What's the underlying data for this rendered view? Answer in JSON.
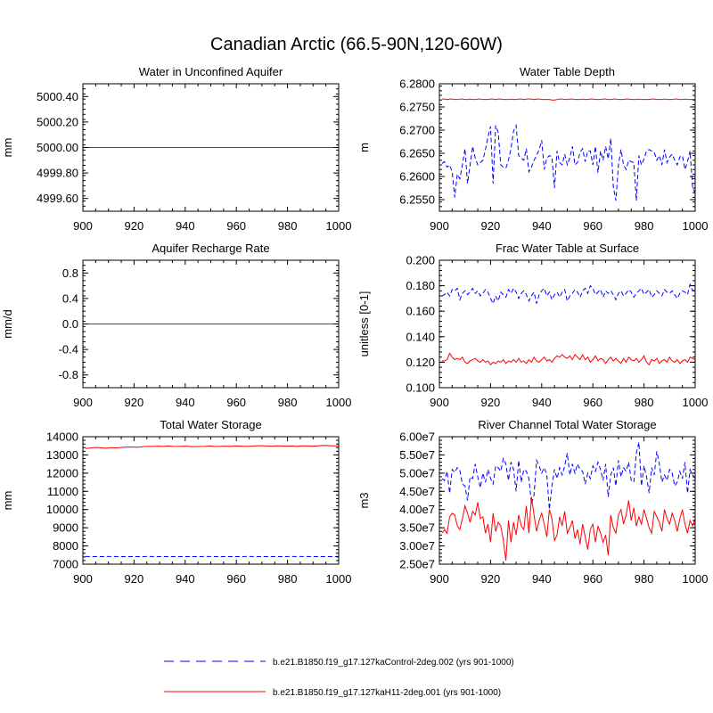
{
  "title": "Canadian Arctic (66.5-90N,120-60W)",
  "colors": {
    "series_0": "#0000ff",
    "series_1": "#ff0000",
    "axis": "#000000"
  },
  "legend": {
    "placement": "bottom",
    "items": [
      {
        "label": "b.e21.B1850.f19_g17.127kaControl-2deg.002 (yrs 901-1000)",
        "color": "#0000ff",
        "style": "dashed"
      },
      {
        "label": "b.e21.B1850.f19_g17.127kaH11-2deg.001 (yrs 901-1000)",
        "color": "#ff0000",
        "style": "solid"
      }
    ]
  },
  "chart_data": [
    {
      "type": "line",
      "title": "Water in Unconfined Aquifer",
      "ylabel": "mm",
      "xlim": [
        900,
        1000
      ],
      "ylim": [
        4999.5,
        5000.5
      ],
      "xticks": [
        900,
        920,
        940,
        960,
        980,
        1000
      ],
      "yticks": [
        "4999.60",
        "4999.80",
        "5000.00",
        "5000.20",
        "5000.40"
      ],
      "series": [
        {
          "color": "#0000ff",
          "dash": true,
          "x_start": 901,
          "values": [
            5000,
            5000
          ]
        },
        {
          "color": "#ff0000",
          "dash": false,
          "x_start": 901,
          "values": [
            5000,
            5000
          ]
        }
      ]
    },
    {
      "type": "line",
      "title": "Water Table Depth",
      "ylabel": "m",
      "xlim": [
        900,
        1000
      ],
      "ylim": [
        6.2525,
        6.28
      ],
      "xticks": [
        900,
        920,
        940,
        960,
        980,
        1000
      ],
      "yticks": [
        "6.2550",
        "6.2600",
        "6.2650",
        "6.2700",
        "6.2750",
        "6.2800"
      ],
      "series": [
        {
          "color": "#0000ff",
          "dash": true,
          "x_start": 901,
          "values": [
            6.2628,
            6.2632,
            6.262,
            6.2625,
            6.261,
            6.2555,
            6.2605,
            6.2595,
            6.2625,
            6.266,
            6.2585,
            6.2625,
            6.2665,
            6.264,
            6.2625,
            6.263,
            6.2635,
            6.2658,
            6.2685,
            6.2708,
            6.2585,
            6.271,
            6.2695,
            6.2625,
            6.262,
            6.2618,
            6.2635,
            6.266,
            6.2698,
            6.271,
            6.2645,
            6.264,
            6.2635,
            6.266,
            6.261,
            6.262,
            6.2635,
            6.2645,
            6.2658,
            6.2678,
            6.2615,
            6.264,
            6.2645,
            6.2642,
            6.2575,
            6.2655,
            6.263,
            6.2625,
            6.2648,
            6.2625,
            6.264,
            6.2665,
            6.2625,
            6.263,
            6.2652,
            6.266,
            6.2632,
            6.2655,
            6.2655,
            6.2625,
            6.2665,
            6.2608,
            6.2655,
            6.2635,
            6.2665,
            6.2638,
            6.2682,
            6.2578,
            6.2548,
            6.2625,
            6.2658,
            6.2625,
            6.2615,
            6.2635,
            6.2632,
            6.263,
            6.2548,
            6.2645,
            6.2625,
            6.2638,
            6.2655,
            6.2658,
            6.2655,
            6.2652,
            6.2635,
            6.2645,
            6.2625,
            6.2658,
            6.263,
            6.2642,
            6.2648,
            6.2635,
            6.2625,
            6.2642,
            6.2645,
            6.2615,
            6.2632,
            6.2655,
            6.2575,
            6.2565
          ]
        },
        {
          "color": "#ff0000",
          "dash": false,
          "x_start": 901,
          "values": [
            6.2767,
            6.2767,
            6.2766,
            6.2767,
            6.2767,
            6.2766,
            6.2766,
            6.2767,
            6.2767,
            6.2766,
            6.2766,
            6.2767,
            6.2766,
            6.2766,
            6.2767,
            6.2767,
            6.2766,
            6.2766,
            6.2766,
            6.2767,
            6.2767,
            6.2766,
            6.2767,
            6.2767,
            6.2766,
            6.2766,
            6.2766,
            6.2767,
            6.2766,
            6.2766,
            6.2767,
            6.2767,
            6.2766,
            6.2767,
            6.2767,
            6.2767,
            6.2766,
            6.2767,
            6.2767,
            6.2766,
            6.2766,
            6.2766,
            6.2766,
            6.2765,
            6.2765,
            6.2766,
            6.2767,
            6.2767,
            6.2766,
            6.2766,
            6.2767,
            6.2767,
            6.2766,
            6.2766,
            6.2766,
            6.2767,
            6.2766,
            6.2766,
            6.2767,
            6.2767,
            6.2766,
            6.2766,
            6.2766,
            6.2767,
            6.2767,
            6.2766,
            6.2766,
            6.2767,
            6.2767,
            6.2766,
            6.2766,
            6.2766,
            6.2767,
            6.2767,
            6.2766,
            6.2766,
            6.2766,
            6.2767,
            6.2766,
            6.2766,
            6.2766,
            6.2766,
            6.2767,
            6.2767,
            6.2766,
            6.2766,
            6.2766,
            6.2767,
            6.2766,
            6.2766,
            6.2766,
            6.2767,
            6.2767,
            6.2766,
            6.2766,
            6.2767,
            6.2766,
            6.2766,
            6.2766,
            6.2766
          ]
        }
      ]
    },
    {
      "type": "line",
      "title": "Aquifer Recharge Rate",
      "ylabel": "mm/d",
      "xlim": [
        900,
        1000
      ],
      "ylim": [
        -1.0,
        1.0
      ],
      "xticks": [
        900,
        920,
        940,
        960,
        980,
        1000
      ],
      "yticks": [
        "-0.8",
        "-0.4",
        "0.0",
        "0.4",
        "0.8"
      ],
      "series": [
        {
          "color": "#0000ff",
          "dash": true,
          "x_start": 901,
          "values": [
            0,
            0
          ]
        },
        {
          "color": "#ff0000",
          "dash": false,
          "x_start": 901,
          "values": [
            0,
            0
          ]
        }
      ]
    },
    {
      "type": "line",
      "title": "Frac Water Table at Surface",
      "ylabel": "unitless [0-1]",
      "xlim": [
        900,
        1000
      ],
      "ylim": [
        0.1,
        0.2
      ],
      "xticks": [
        900,
        920,
        940,
        960,
        980,
        1000
      ],
      "yticks": [
        "0.100",
        "0.120",
        "0.140",
        "0.160",
        "0.180",
        "0.200"
      ],
      "series": [
        {
          "color": "#0000ff",
          "dash": true,
          "x_start": 901,
          "values": [
            0.172,
            0.173,
            0.175,
            0.172,
            0.177,
            0.176,
            0.178,
            0.169,
            0.174,
            0.176,
            0.173,
            0.175,
            0.178,
            0.174,
            0.176,
            0.172,
            0.174,
            0.177,
            0.175,
            0.17,
            0.166,
            0.172,
            0.168,
            0.175,
            0.173,
            0.171,
            0.177,
            0.174,
            0.178,
            0.175,
            0.17,
            0.174,
            0.176,
            0.173,
            0.168,
            0.172,
            0.175,
            0.166,
            0.173,
            0.176,
            0.178,
            0.172,
            0.175,
            0.169,
            0.173,
            0.175,
            0.171,
            0.175,
            0.177,
            0.168,
            0.172,
            0.174,
            0.177,
            0.175,
            0.171,
            0.176,
            0.178,
            0.174,
            0.18,
            0.178,
            0.173,
            0.175,
            0.177,
            0.171,
            0.176,
            0.174,
            0.176,
            0.173,
            0.169,
            0.174,
            0.176,
            0.172,
            0.174,
            0.177,
            0.175,
            0.171,
            0.174,
            0.176,
            0.178,
            0.173,
            0.175,
            0.177,
            0.171,
            0.173,
            0.176,
            0.174,
            0.172,
            0.177,
            0.175,
            0.174,
            0.176,
            0.173,
            0.17,
            0.174,
            0.176,
            0.175,
            0.173,
            0.181,
            0.176,
            0.177
          ]
        },
        {
          "color": "#ff0000",
          "dash": false,
          "x_start": 901,
          "values": [
            0.121,
            0.121,
            0.122,
            0.127,
            0.124,
            0.122,
            0.123,
            0.122,
            0.124,
            0.12,
            0.119,
            0.121,
            0.122,
            0.123,
            0.121,
            0.12,
            0.122,
            0.12,
            0.121,
            0.118,
            0.12,
            0.119,
            0.121,
            0.12,
            0.122,
            0.119,
            0.121,
            0.12,
            0.122,
            0.12,
            0.123,
            0.12,
            0.121,
            0.119,
            0.122,
            0.12,
            0.124,
            0.121,
            0.12,
            0.122,
            0.124,
            0.121,
            0.122,
            0.12,
            0.123,
            0.125,
            0.124,
            0.126,
            0.124,
            0.123,
            0.125,
            0.122,
            0.126,
            0.124,
            0.122,
            0.126,
            0.122,
            0.124,
            0.12,
            0.122,
            0.125,
            0.121,
            0.123,
            0.122,
            0.119,
            0.122,
            0.124,
            0.121,
            0.123,
            0.121,
            0.119,
            0.123,
            0.12,
            0.124,
            0.122,
            0.121,
            0.123,
            0.12,
            0.122,
            0.125,
            0.12,
            0.118,
            0.122,
            0.121,
            0.123,
            0.119,
            0.121,
            0.122,
            0.12,
            0.124,
            0.121,
            0.12,
            0.122,
            0.119,
            0.121,
            0.122,
            0.12,
            0.124,
            0.123,
            0.122
          ]
        }
      ]
    },
    {
      "type": "line",
      "title": "Total Water Storage",
      "ylabel": "mm",
      "xlim": [
        900,
        1000
      ],
      "ylim": [
        7000,
        14000
      ],
      "xticks": [
        900,
        920,
        940,
        960,
        980,
        1000
      ],
      "yticks": [
        "7000",
        "8000",
        "9000",
        "10000",
        "11000",
        "12000",
        "13000",
        "14000"
      ],
      "series": [
        {
          "color": "#0000ff",
          "dash": true,
          "x_start": 901,
          "values": [
            7420,
            7418,
            7420,
            7415,
            7418,
            7420,
            7416,
            7414,
            7418,
            7420,
            7418,
            7416,
            7420,
            7419,
            7417,
            7418,
            7422,
            7418,
            7416,
            7420
          ]
        },
        {
          "color": "#ff0000",
          "dash": false,
          "x_start": 901,
          "values": [
            13350,
            13380,
            13410,
            13390,
            13370,
            13400,
            13390,
            13410,
            13430,
            13440,
            13420,
            13450,
            13470,
            13460,
            13480,
            13470,
            13490,
            13470,
            13460,
            13480,
            13470,
            13450,
            13460,
            13470,
            13490,
            13460,
            13470,
            13480,
            13470,
            13490,
            13480,
            13470,
            13480,
            13500,
            13510,
            13490,
            13480,
            13500,
            13490,
            13480,
            13490,
            13470,
            13500,
            13490,
            13480,
            13500,
            13520,
            13510,
            13500,
            13490
          ]
        }
      ]
    },
    {
      "type": "line",
      "title": "River Channel Total Water Storage",
      "ylabel": "m3",
      "xlim": [
        900,
        1000
      ],
      "ylim": [
        25000000,
        60000000
      ],
      "xticks": [
        900,
        920,
        940,
        960,
        980,
        1000
      ],
      "yticks": [
        "2.50e7",
        "3.00e7",
        "3.50e7",
        "4.00e7",
        "4.50e7",
        "5.00e7",
        "5.50e7",
        "6.00e7"
      ],
      "series": [
        {
          "color": "#0000ff",
          "dash": true,
          "x_start": 901,
          "values": [
            48500000,
            48000000,
            50500000,
            44500000,
            51000000,
            50200000,
            51500000,
            50800000,
            47000000,
            46500000,
            42500000,
            49000000,
            48500000,
            52500000,
            49000000,
            46000000,
            50000000,
            47500000,
            51000000,
            48500000,
            47000000,
            52000000,
            51500000,
            50500000,
            54000000,
            52500000,
            48000000,
            53000000,
            51000000,
            45000000,
            53500000,
            47500000,
            51000000,
            50500000,
            48500000,
            41500000,
            44000000,
            53500000,
            52000000,
            50000000,
            51500000,
            49500000,
            40000000,
            46500000,
            51000000,
            48500000,
            51500000,
            49500000,
            52000000,
            55500000,
            49500000,
            52500000,
            50000000,
            52500000,
            51000000,
            50500000,
            47000000,
            50000000,
            48500000,
            52000000,
            50500000,
            53000000,
            51000000,
            48000000,
            52500000,
            43500000,
            49500000,
            51500000,
            46500000,
            53500000,
            49000000,
            51500000,
            50500000,
            53000000,
            48000000,
            47500000,
            55500000,
            58500000,
            46500000,
            52000000,
            49000000,
            44500000,
            51500000,
            49500000,
            56000000,
            52500000,
            47500000,
            49500000,
            48000000,
            51000000,
            50000000,
            46500000,
            47500000,
            50500000,
            48500000,
            53000000,
            44500000,
            51000000,
            49500000,
            48500000
          ]
        },
        {
          "color": "#ff0000",
          "dash": false,
          "x_start": 901,
          "values": [
            33500000,
            34500000,
            33500000,
            38000000,
            39000000,
            38500000,
            35500000,
            34500000,
            37500000,
            41000000,
            39000000,
            36500000,
            39500000,
            38500000,
            42000000,
            37500000,
            38000000,
            33500000,
            36000000,
            31000000,
            39000000,
            34000000,
            36500000,
            35500000,
            31500000,
            26000000,
            37000000,
            31000000,
            36500000,
            33000000,
            38500000,
            35500000,
            34500000,
            41000000,
            33500000,
            43500000,
            38500000,
            34000000,
            37000000,
            39000000,
            36000000,
            32500000,
            40000000,
            37500000,
            31500000,
            33000000,
            38000000,
            35500000,
            39500000,
            33500000,
            35000000,
            37000000,
            32000000,
            34500000,
            30500000,
            36000000,
            32500000,
            29000000,
            34500000,
            36000000,
            31000000,
            35500000,
            33500000,
            31000000,
            33000000,
            27500000,
            38500000,
            35000000,
            33500000,
            38500000,
            40000000,
            36000000,
            38500000,
            42500000,
            37000000,
            40500000,
            35500000,
            38000000,
            36000000,
            40000000,
            37500000,
            35000000,
            33500000,
            39500000,
            38000000,
            36500000,
            34000000,
            40000000,
            37500000,
            36000000,
            39000000,
            37000000,
            34000000,
            37500000,
            40000000,
            36000000,
            33500000,
            37000000,
            35500000,
            37500000
          ]
        }
      ]
    }
  ]
}
